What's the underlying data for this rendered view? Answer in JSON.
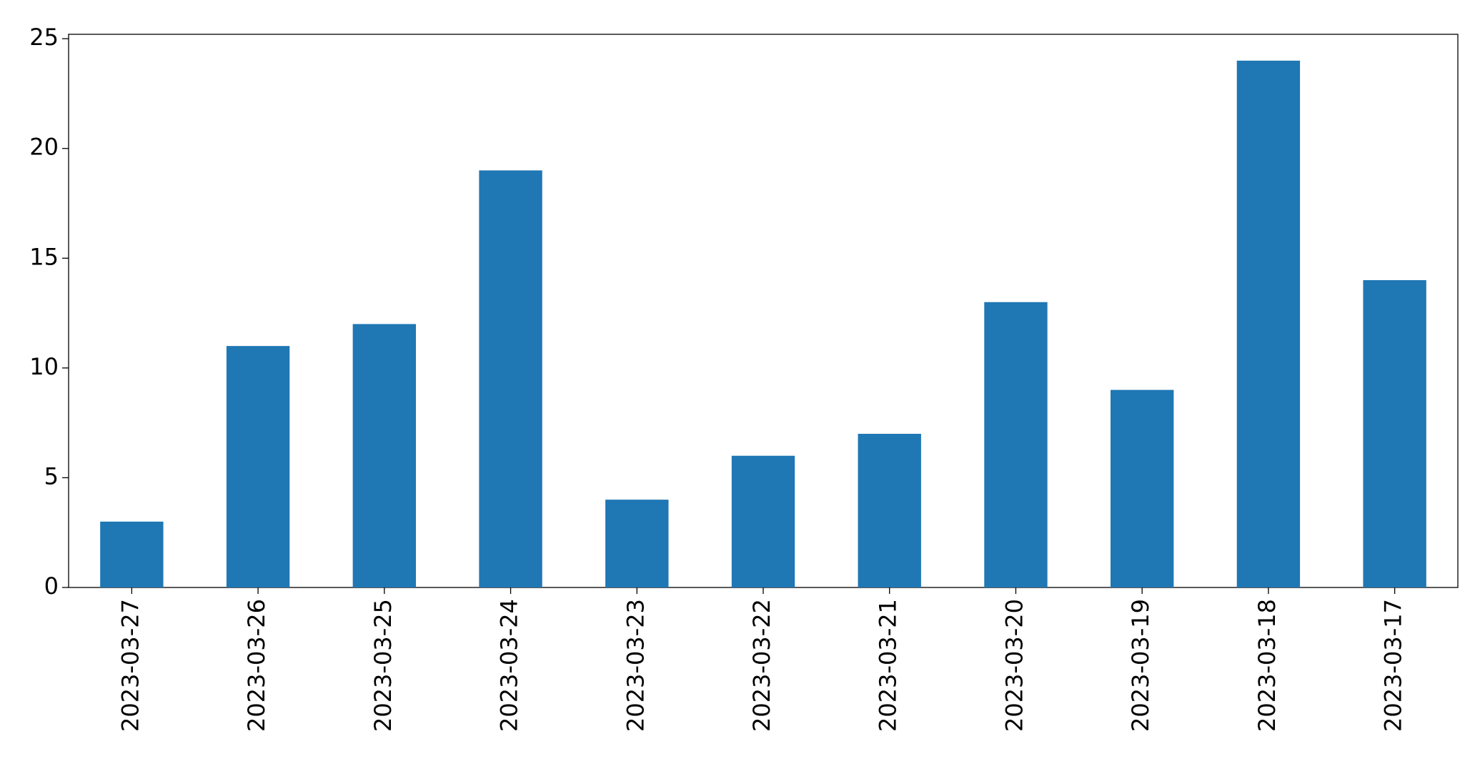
{
  "chart_data": {
    "type": "bar",
    "categories": [
      "2023-03-27",
      "2023-03-26",
      "2023-03-25",
      "2023-03-24",
      "2023-03-23",
      "2023-03-22",
      "2023-03-21",
      "2023-03-20",
      "2023-03-19",
      "2023-03-18",
      "2023-03-17"
    ],
    "values": [
      3,
      11,
      12,
      19,
      4,
      6,
      7,
      13,
      9,
      24,
      14
    ],
    "color": "#1f77b4",
    "ylim": [
      0,
      25.2
    ],
    "yticks": [
      0,
      5,
      10,
      15,
      20,
      25
    ],
    "grid": false
  }
}
